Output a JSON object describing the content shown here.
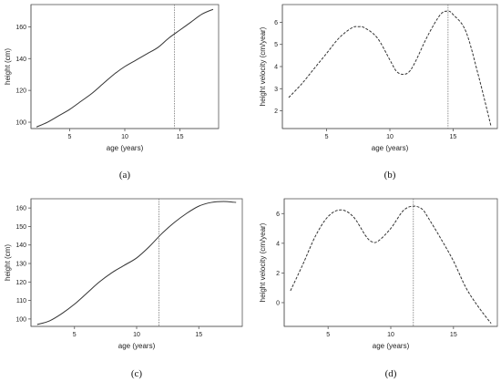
{
  "chart_data": [
    {
      "id": "a",
      "type": "line",
      "panel_label": "(a)",
      "xlabel": "age (years)",
      "ylabel": "height (cm)",
      "xlim": [
        1.5,
        18.5
      ],
      "ylim": [
        96,
        174
      ],
      "xticks": [
        5,
        10,
        15
      ],
      "yticks": [
        100,
        120,
        140,
        160
      ],
      "vline": 14.5,
      "style": "solid",
      "x": [
        2,
        3,
        4,
        5,
        6,
        7,
        8,
        9,
        10,
        11,
        12,
        13,
        14,
        15,
        16,
        17,
        18
      ],
      "y": [
        97,
        100,
        104,
        108,
        113,
        118,
        124,
        130,
        135,
        139,
        143,
        147,
        153,
        158,
        163,
        168,
        171
      ]
    },
    {
      "id": "b",
      "type": "line",
      "panel_label": "(b)",
      "xlabel": "age (years)",
      "ylabel": "height velocity (cm/year)",
      "xlim": [
        1.5,
        18.5
      ],
      "ylim": [
        1.2,
        6.8
      ],
      "xticks": [
        5,
        10,
        15
      ],
      "yticks": [
        2,
        3,
        4,
        5,
        6
      ],
      "vline": 14.6,
      "style": "dashed",
      "x": [
        2,
        3,
        4,
        5,
        6,
        7,
        7.5,
        8,
        9,
        10,
        10.5,
        11,
        11.5,
        12,
        13,
        14,
        14.6,
        15,
        16,
        17,
        18
      ],
      "y": [
        2.6,
        3.2,
        3.9,
        4.6,
        5.3,
        5.75,
        5.8,
        5.75,
        5.3,
        4.3,
        3.8,
        3.65,
        3.75,
        4.2,
        5.4,
        6.35,
        6.5,
        6.35,
        5.6,
        3.6,
        1.3
      ]
    },
    {
      "id": "c",
      "type": "line",
      "panel_label": "(c)",
      "xlabel": "age (years)",
      "ylabel": "height (cm)",
      "xlim": [
        1.5,
        18.5
      ],
      "ylim": [
        96,
        165
      ],
      "xticks": [
        5,
        10,
        15
      ],
      "yticks": [
        100,
        110,
        120,
        130,
        140,
        150,
        160
      ],
      "vline": 11.8,
      "style": "solid",
      "x": [
        2,
        3,
        4,
        5,
        6,
        7,
        8,
        9,
        10,
        11,
        12,
        13,
        14,
        15,
        16,
        17,
        18
      ],
      "y": [
        97,
        99,
        103,
        108,
        114,
        120,
        125,
        129,
        133,
        139,
        146,
        152,
        157,
        161,
        163,
        163.5,
        163
      ]
    },
    {
      "id": "d",
      "type": "line",
      "panel_label": "(d)",
      "xlabel": "age (years)",
      "ylabel": "height velocity (cm/year)",
      "xlim": [
        1.5,
        18.5
      ],
      "ylim": [
        -1.6,
        7
      ],
      "xticks": [
        5,
        10,
        15
      ],
      "yticks": [
        0,
        2,
        4,
        6
      ],
      "vline": 11.8,
      "style": "dashed",
      "x": [
        2,
        3,
        4,
        5,
        6,
        7,
        8,
        8.5,
        9,
        10,
        11,
        11.8,
        12.5,
        13,
        14,
        15,
        16,
        17,
        18
      ],
      "y": [
        0.8,
        2.6,
        4.5,
        5.8,
        6.25,
        5.8,
        4.5,
        4.1,
        4.15,
        5.0,
        6.2,
        6.5,
        6.3,
        5.7,
        4.3,
        2.8,
        1.0,
        -0.3,
        -1.4
      ]
    }
  ]
}
